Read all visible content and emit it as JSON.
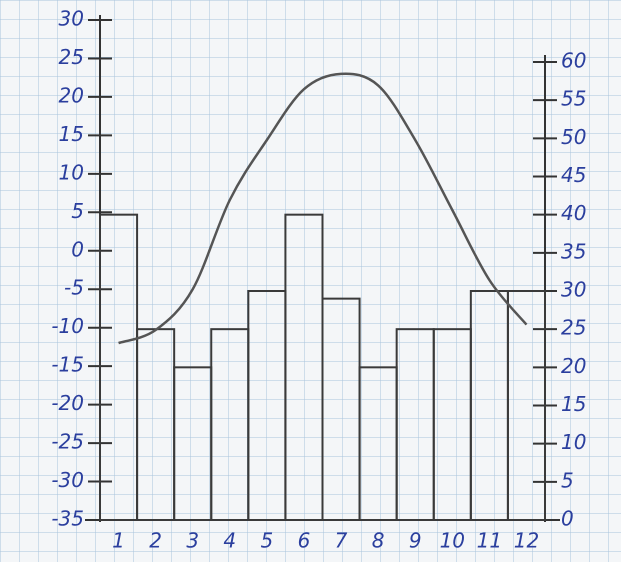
{
  "chart_data": {
    "type": "bar",
    "categories": [
      "1",
      "2",
      "3",
      "4",
      "5",
      "6",
      "7",
      "8",
      "9",
      "10",
      "11",
      "12"
    ],
    "series": [
      {
        "type": "bar",
        "axis": "y2",
        "color": "#3a3a3a",
        "values": [
          40,
          25,
          20,
          25,
          30,
          40,
          29,
          20,
          25,
          25,
          30,
          30
        ]
      },
      {
        "type": "line",
        "color": "#555555",
        "values": [
          -12,
          -10.3,
          -5,
          6.6,
          14.4,
          21,
          23,
          21.5,
          14.4,
          5.3,
          -3.8,
          -9.6
        ]
      }
    ],
    "ylim": [
      -35,
      30
    ],
    "yticks": [
      30,
      25,
      20,
      15,
      10,
      5,
      0,
      -5,
      -10,
      -15,
      -20,
      -25,
      -30,
      -35
    ],
    "y2lim": [
      0,
      60
    ],
    "y2ticks": [
      60,
      55,
      50,
      45,
      40,
      35,
      30,
      25,
      20,
      15,
      10,
      5,
      0
    ],
    "grid": true,
    "tick_color": "#2b3f9e"
  }
}
